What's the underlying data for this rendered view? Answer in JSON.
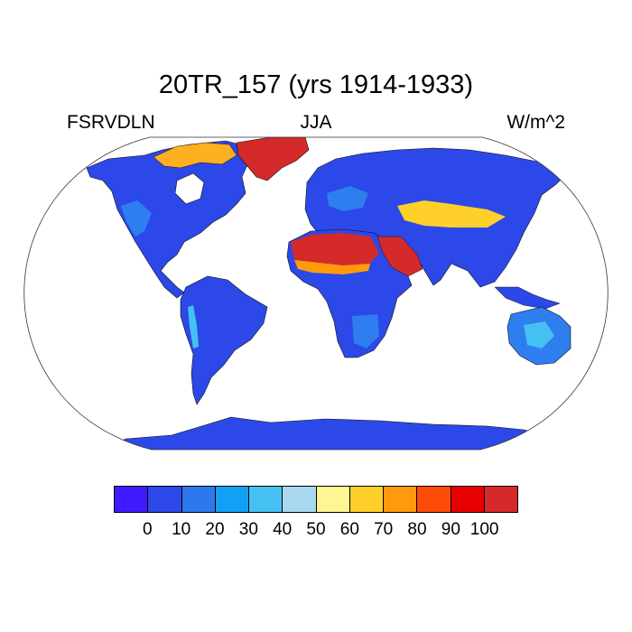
{
  "header": {
    "title": "20TR_157 (yrs 1914-1933)",
    "variable": "FSRVDLN",
    "season": "JJA",
    "units": "W/m^2"
  },
  "map": {
    "projection": "Robinson",
    "fill_colors": {
      "ocean": "#ffffff",
      "land_low": "#2a48e6",
      "land_mid": "#3a8cf0",
      "sahara_arabia": "#d93232",
      "greenland": "#d93232"
    }
  },
  "colorbar": {
    "colors": [
      "#3f1aff",
      "#2c48e8",
      "#2e78ee",
      "#12a0f5",
      "#45c0f2",
      "#a7d8f0",
      "#fff592",
      "#ffd029",
      "#ff9a0d",
      "#ff4b08",
      "#e80000",
      "#d52a2a"
    ],
    "tick_labels": [
      "0",
      "10",
      "20",
      "30",
      "40",
      "50",
      "60",
      "70",
      "80",
      "90",
      "100"
    ]
  }
}
